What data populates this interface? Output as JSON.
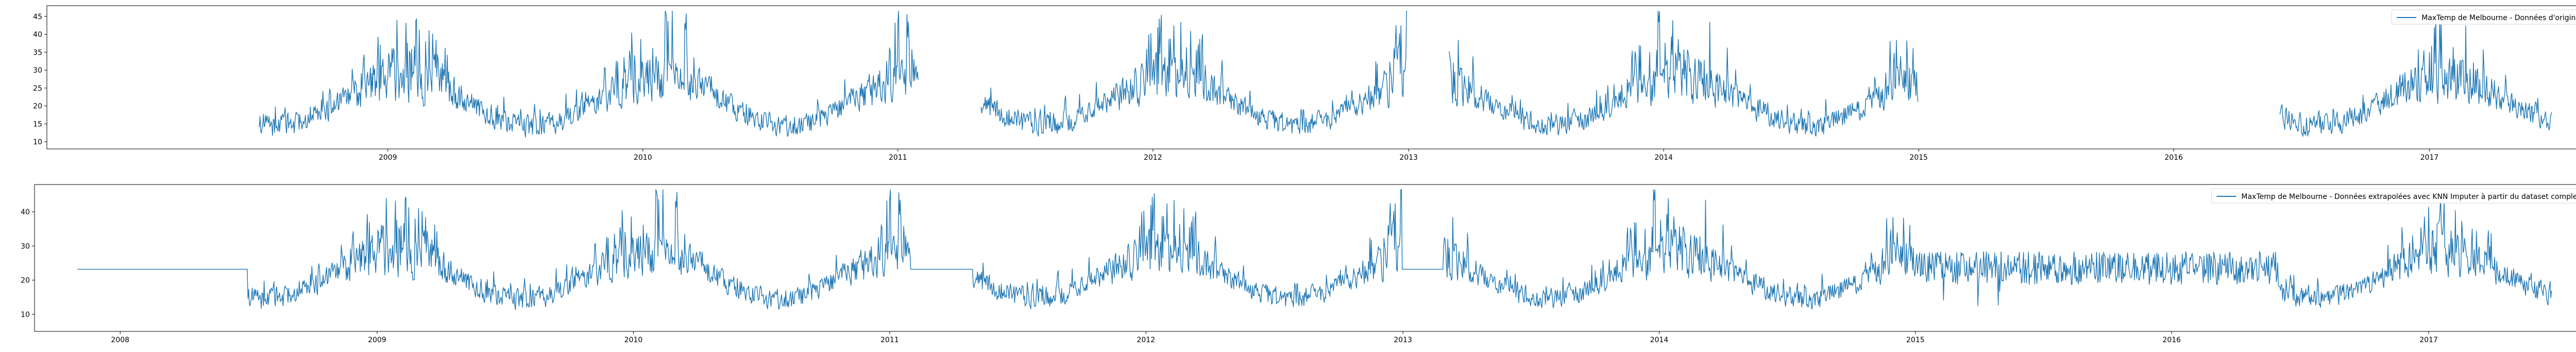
{
  "chart_data": [
    {
      "type": "line",
      "title": "",
      "xlabel": "",
      "ylabel": "",
      "x_range": [
        "2007-09-01",
        "2017-08-15"
      ],
      "ylim": [
        8,
        48
      ],
      "x_ticks": [
        "2009",
        "2010",
        "2011",
        "2012",
        "2013",
        "2014",
        "2015",
        "2016",
        "2017"
      ],
      "y_ticks": [
        10,
        15,
        20,
        25,
        30,
        35,
        40,
        45
      ],
      "grid": false,
      "legend_position": "top-right",
      "series": [
        {
          "name": "MaxTemp de Melbourne - Données d'origine",
          "color": "#1f77b4",
          "seasonal_profile": {
            "date_range": [
              "2008-07-01",
              "2017-06-25"
            ],
            "summer_peak_date": "01-25",
            "mean_high": 27.5,
            "mean_low": 14.5,
            "fluctuation": 5.5,
            "max": 46.5,
            "min": 9.5
          },
          "gaps": [
            [
              "2011-01-31",
              "2011-04-30"
            ],
            [
              "2012-12-31",
              "2013-02-28"
            ],
            [
              "2015-01-01",
              "2016-06-01"
            ]
          ]
        }
      ]
    },
    {
      "type": "line",
      "title": "",
      "xlabel": "",
      "ylabel": "",
      "x_range": [
        "2007-09-01",
        "2017-08-15"
      ],
      "ylim": [
        5,
        48
      ],
      "x_ticks": [
        "2008",
        "2009",
        "2010",
        "2011",
        "2012",
        "2013",
        "2014",
        "2015",
        "2016",
        "2017"
      ],
      "y_ticks": [
        10,
        20,
        30,
        40
      ],
      "grid": false,
      "legend_position": "top-right",
      "series": [
        {
          "name": "MaxTemp de Melbourne - Données extrapolées avec KNN Imputer à partir du dataset complet",
          "color": "#1f77b4",
          "seasonal_profile": {
            "date_range": [
              "2007-11-01",
              "2017-06-25"
            ],
            "summer_peak_date": "01-25",
            "mean_high": 27.5,
            "mean_low": 14.5,
            "fluctuation": 5.5,
            "max": 46.5,
            "min": 7
          },
          "constant_segments": [
            {
              "range": [
                "2007-11-01",
                "2008-07-01"
              ],
              "value": 23.2
            },
            {
              "range": [
                "2011-01-31",
                "2011-04-30"
              ],
              "value": 23.2
            },
            {
              "range": [
                "2012-12-31",
                "2013-02-28"
              ],
              "value": 23.2
            }
          ],
          "flat_segments": [
            {
              "range": [
                "2015-01-01",
                "2016-06-01"
              ],
              "mean": 23.5,
              "fluctuation": 3.5
            }
          ]
        }
      ]
    }
  ]
}
